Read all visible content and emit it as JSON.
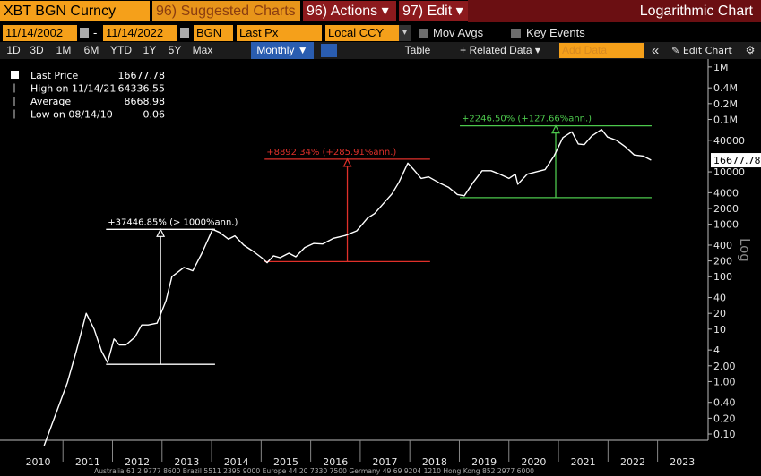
{
  "toolbar": {
    "security": "XBT BGN Curncy",
    "suggested": "96) Suggested Charts",
    "actions": "96) Actions ▾",
    "edit": "97) Edit ▾",
    "chart_kind": "Logarithmic Chart"
  },
  "row2": {
    "start_date": "11/14/2002",
    "dash": "-",
    "end_date": "11/14/2022",
    "source": "BGN",
    "field": "Last Px",
    "currency": "Local CCY",
    "mov_avgs": "Mov Avgs",
    "key_events": "Key Events"
  },
  "row3": {
    "periods": [
      "1D",
      "3D",
      "1M",
      "6M",
      "YTD",
      "1Y",
      "5Y",
      "Max"
    ],
    "frequency": "Monthly ▼",
    "table": "Table",
    "related": "+ Related Data ▾",
    "add_data": "Add Data",
    "collapse": "«",
    "edit_chart": "✎ Edit Chart",
    "settings": "⚙"
  },
  "chart_data": {
    "type": "line",
    "log_scale": true,
    "y_axis_label": "Log",
    "stats": [
      {
        "label": "Last Price",
        "value": 16677.78
      },
      {
        "label": "High on 11/14/21",
        "value": 64336.55
      },
      {
        "label": "Average",
        "value": 8668.98
      },
      {
        "label": "Low on 08/14/10",
        "value": 0.06
      }
    ],
    "x": [
      2010.62,
      2011.09,
      2011.27,
      2011.47,
      2011.63,
      2011.78,
      2011.9,
      2012.03,
      2012.14,
      2012.27,
      2012.45,
      2012.59,
      2012.72,
      2012.9,
      2013.08,
      2013.2,
      2013.31,
      2013.44,
      2013.62,
      2013.8,
      2014.02,
      2014.16,
      2014.34,
      2014.47,
      2014.65,
      2014.83,
      2015.01,
      2015.12,
      2015.25,
      2015.38,
      2015.56,
      2015.7,
      2015.88,
      2016.06,
      2016.24,
      2016.46,
      2016.7,
      2016.93,
      2017.15,
      2017.29,
      2017.47,
      2017.64,
      2017.78,
      2017.96,
      2018.08,
      2018.23,
      2018.38,
      2018.59,
      2018.78,
      2018.96,
      2019.1,
      2019.28,
      2019.46,
      2019.64,
      2019.82,
      2020.0,
      2020.13,
      2020.18,
      2020.37,
      2020.55,
      2020.73,
      2020.91,
      2021.09,
      2021.27,
      2021.4,
      2021.52,
      2021.67,
      2021.87,
      2021.99,
      2022.17,
      2022.35,
      2022.53,
      2022.71,
      2022.87
    ],
    "series": [
      {
        "name": "Last Price",
        "color": "#ffffff",
        "values": [
          0.06,
          0.96,
          3.8,
          20,
          10,
          3.8,
          2.3,
          6.5,
          5,
          5,
          7,
          12,
          12,
          13,
          35,
          100,
          120,
          150,
          130,
          275,
          800,
          700,
          520,
          600,
          400,
          310,
          230,
          185,
          250,
          230,
          280,
          240,
          360,
          430,
          420,
          540,
          610,
          750,
          1320,
          1600,
          2500,
          3800,
          6300,
          14700,
          11000,
          7500,
          8000,
          6200,
          5100,
          3700,
          3500,
          6300,
          10500,
          10500,
          9000,
          7500,
          9000,
          5800,
          9000,
          10000,
          11000,
          20000,
          45000,
          58000,
          34000,
          33000,
          48000,
          64336.55,
          46000,
          40000,
          30000,
          21000,
          20000,
          16677.78
        ]
      }
    ],
    "xlim": [
      2009.73,
      2024.02
    ],
    "xticks": [
      {
        "value": 2010.5,
        "label": "2010"
      },
      {
        "value": 2011.5,
        "label": "2011"
      },
      {
        "value": 2012.5,
        "label": "2012"
      },
      {
        "value": 2013.5,
        "label": "2013"
      },
      {
        "value": 2014.5,
        "label": "2014"
      },
      {
        "value": 2015.5,
        "label": "2015"
      },
      {
        "value": 2016.5,
        "label": "2016"
      },
      {
        "value": 2017.5,
        "label": "2017"
      },
      {
        "value": 2018.5,
        "label": "2018"
      },
      {
        "value": 2019.5,
        "label": "2019"
      },
      {
        "value": 2020.5,
        "label": "2020"
      },
      {
        "value": 2021.5,
        "label": "2021"
      },
      {
        "value": 2022.5,
        "label": "2022"
      },
      {
        "value": 2023.5,
        "label": "2023"
      }
    ],
    "xminor_ticks": [
      2011,
      2012,
      2013,
      2014,
      2015,
      2016,
      2017,
      2018,
      2019,
      2020,
      2021,
      2022,
      2023
    ],
    "ylim": [
      0.076,
      1310000
    ],
    "yticks": [
      {
        "value": 1000000,
        "label": "1M"
      },
      {
        "value": 400000,
        "label": "0.4M"
      },
      {
        "value": 200000,
        "label": "0.2M"
      },
      {
        "value": 100000,
        "label": "0.1M"
      },
      40000,
      10000,
      4000,
      2000,
      1000,
      400,
      200,
      100,
      40,
      20,
      10,
      4,
      {
        "value": 2,
        "label": "2.00"
      },
      {
        "value": 1,
        "label": "1.00"
      },
      {
        "value": 0.4,
        "label": "0.40"
      },
      {
        "value": 0.2,
        "label": "0.20"
      },
      {
        "value": 0.1,
        "label": "0.10"
      }
    ],
    "annotations": [
      {
        "text": "+37446.85% (> 1000%ann.)",
        "color": "#ffffff",
        "x": [
          2011.87,
          2014.07
        ],
        "y": [
          2.13,
          800
        ]
      },
      {
        "text": "+8892.34% (+285.91%ann.)",
        "color": "#e0302a",
        "x": [
          2015.07,
          2018.41
        ],
        "y": [
          194,
          17450
        ]
      },
      {
        "text": "+2246.50% (+127.66%ann.)",
        "color": "#4cc84c",
        "x": [
          2019.01,
          2022.88
        ],
        "y": [
          3220,
          75560
        ]
      }
    ]
  },
  "footer": "Australia 61 2 9777 8600 Brazil 5511 2395 9000 Europe 44 20 7330 7500 Germany 49 69 9204 1210 Hong Kong 852 2977 6000"
}
